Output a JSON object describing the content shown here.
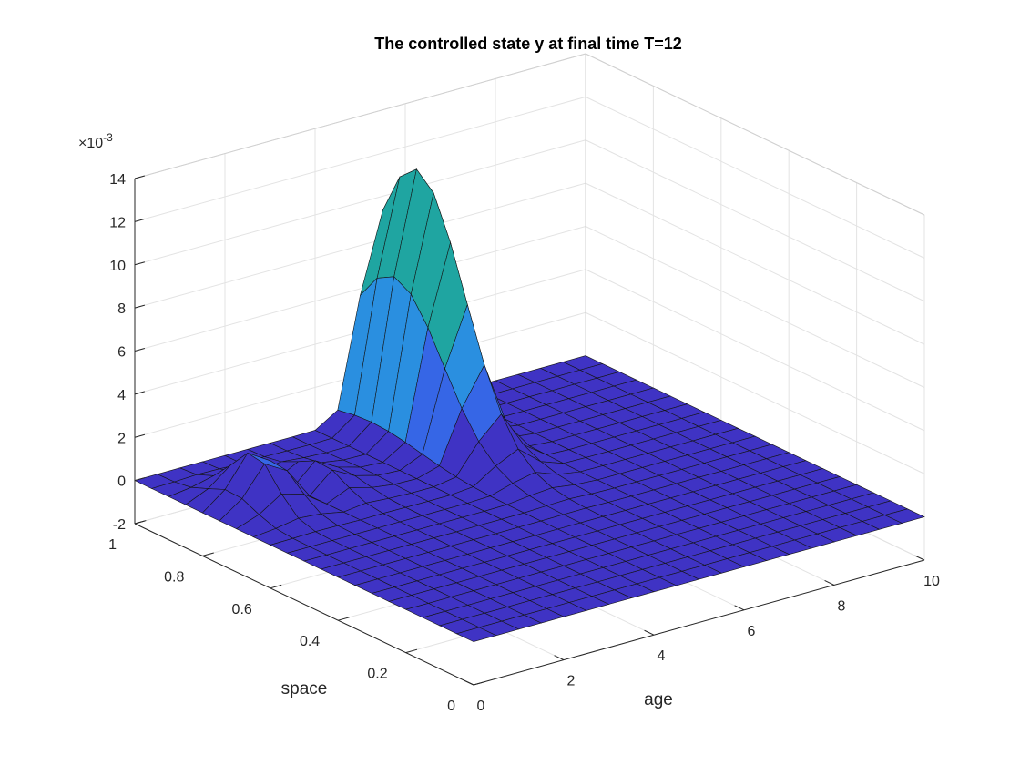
{
  "chart_data": {
    "type": "surface3d",
    "title": "The controlled state y at final time T=12",
    "xlabel": "age",
    "ylabel": "space",
    "zlabel": "",
    "z_exponent_label": "×10",
    "z_exponent_power": "-3",
    "xlim": [
      0,
      10
    ],
    "ylim": [
      0,
      1
    ],
    "zlim": [
      -2,
      14
    ],
    "x_ticks": [
      "0",
      "2",
      "4",
      "6",
      "8",
      "10"
    ],
    "y_ticks": [
      "0",
      "0.2",
      "0.4",
      "0.6",
      "0.8",
      "1"
    ],
    "z_ticks": [
      "-2",
      "0",
      "2",
      "4",
      "6",
      "8",
      "10",
      "12",
      "14"
    ],
    "grid": true,
    "colormap": "parula",
    "surface_note": "z values in units of 1e-3; flat near 0 with a control bump along age≈0–2 and a sharp peak (~12.4) near age≈5.4, space≈0.9",
    "peak": {
      "x": 5.4,
      "y": 0.9,
      "z": 12.4
    }
  }
}
